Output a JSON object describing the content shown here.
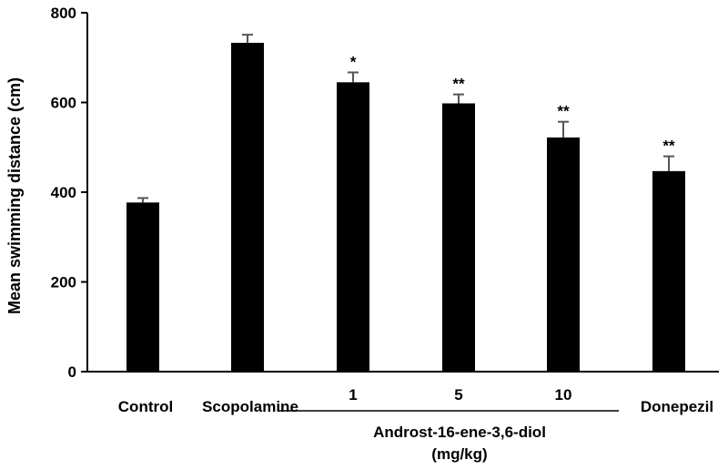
{
  "chart_data": {
    "type": "bar",
    "ylabel": "Mean swimming distance (cm)",
    "ylim": [
      0,
      800
    ],
    "yticks": [
      0,
      200,
      400,
      600,
      800
    ],
    "grid": false,
    "legend": "none",
    "bar_color": "#000000",
    "error_color": "#555555",
    "categories": [
      "Control",
      "Scopolamine",
      "1",
      "5",
      "10",
      "Donepezil"
    ],
    "values": [
      377,
      733,
      645,
      598,
      522,
      447
    ],
    "errors": [
      10,
      18,
      22,
      20,
      35,
      33
    ],
    "significance": [
      "",
      "",
      "*",
      "**",
      "**",
      "**"
    ],
    "group_label": {
      "text_line1": "Androst-16-ene-3,6-diol",
      "text_line2": "(mg/kg)",
      "spans": [
        "1",
        "10"
      ]
    }
  }
}
